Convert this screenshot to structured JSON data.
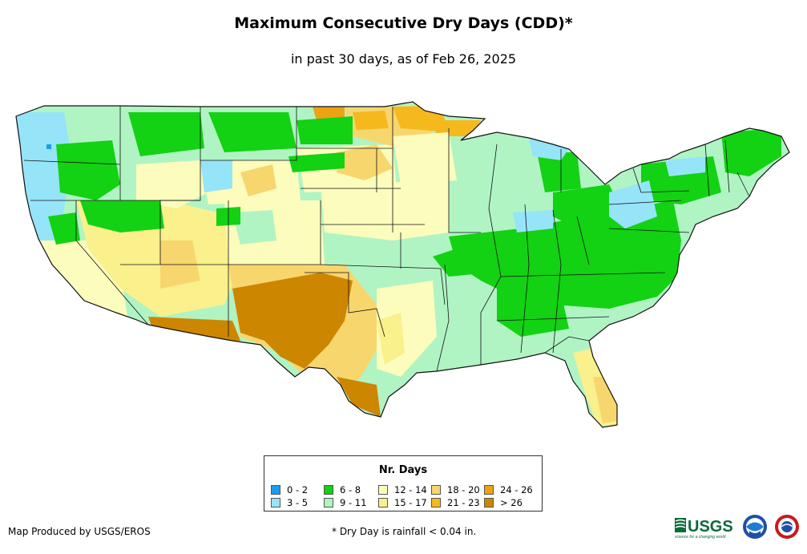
{
  "title": "Maximum Consecutive Dry Days (CDD)*",
  "subtitle": "in past 30 days, as of Feb 26, 2025",
  "legend": {
    "title": "Nr. Days",
    "items": [
      {
        "label": "0 - 2",
        "color": "#1e9bf0"
      },
      {
        "label": "3 - 5",
        "color": "#96e4f8"
      },
      {
        "label": "6 - 8",
        "color": "#13d113"
      },
      {
        "label": "9 - 11",
        "color": "#b0f4c4"
      },
      {
        "label": "12 - 14",
        "color": "#fcfcbc"
      },
      {
        "label": "15 - 17",
        "color": "#faf08c"
      },
      {
        "label": "18 - 20",
        "color": "#f8d66e"
      },
      {
        "label": "21 - 23",
        "color": "#f5b91e"
      },
      {
        "label": "24 - 26",
        "color": "#eda216"
      },
      {
        "label": "> 26",
        "color": "#cd8600"
      }
    ]
  },
  "credit": "Map Produced by USGS/EROS",
  "footnote": "* Dry Day is rainfall < 0.04 in.",
  "logos": {
    "usgs": "USGS",
    "usgs_tagline": "science for a changing world"
  }
}
